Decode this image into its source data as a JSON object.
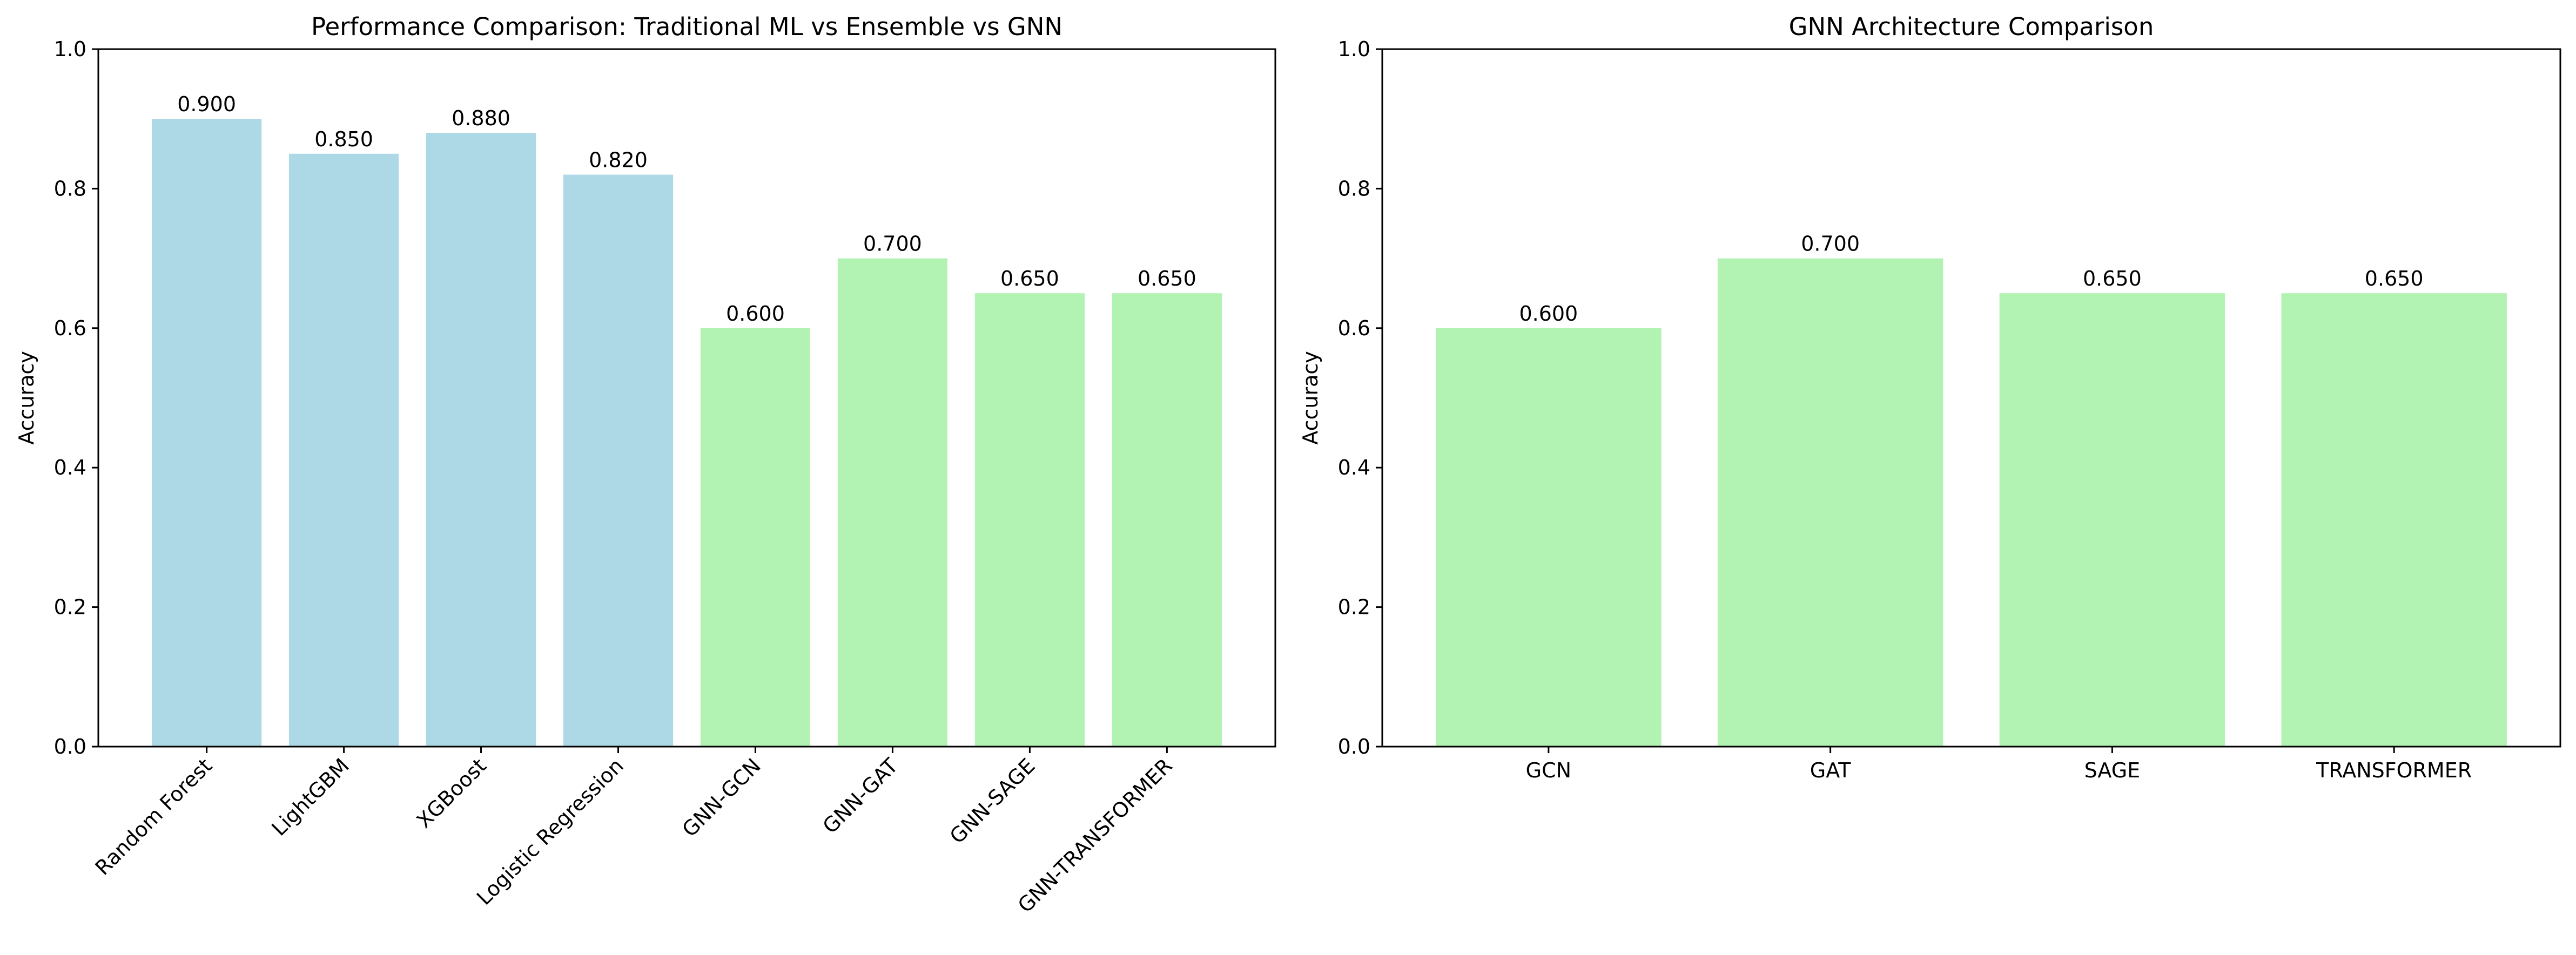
{
  "chart_data": [
    {
      "type": "bar",
      "title": "Performance Comparison: Traditional ML vs Ensemble vs GNN",
      "xlabel": "",
      "ylabel": "Accuracy",
      "ylim": [
        0,
        1.0
      ],
      "yticks": [
        "0.0",
        "0.2",
        "0.4",
        "0.6",
        "0.8",
        "1.0"
      ],
      "categories": [
        "Random Forest",
        "LightGBM",
        "XGBoost",
        "Logistic Regression",
        "GNN-GCN",
        "GNN-GAT",
        "GNN-SAGE",
        "GNN-TRANSFORMER"
      ],
      "values": [
        0.9,
        0.85,
        0.88,
        0.82,
        0.6,
        0.7,
        0.65,
        0.65
      ],
      "value_labels": [
        "0.900",
        "0.850",
        "0.880",
        "0.820",
        "0.600",
        "0.700",
        "0.650",
        "0.650"
      ],
      "bar_colors": [
        "#add8e6",
        "#add8e6",
        "#add8e6",
        "#add8e6",
        "#b2f2b2",
        "#b2f2b2",
        "#b2f2b2",
        "#b2f2b2"
      ],
      "xtick_rotation": 45,
      "grid": false
    },
    {
      "type": "bar",
      "title": "GNN Architecture Comparison",
      "xlabel": "",
      "ylabel": "Accuracy",
      "ylim": [
        0,
        1.0
      ],
      "yticks": [
        "0.0",
        "0.2",
        "0.4",
        "0.6",
        "0.8",
        "1.0"
      ],
      "categories": [
        "GCN",
        "GAT",
        "SAGE",
        "TRANSFORMER"
      ],
      "values": [
        0.6,
        0.7,
        0.65,
        0.65
      ],
      "value_labels": [
        "0.600",
        "0.700",
        "0.650",
        "0.650"
      ],
      "bar_colors": [
        "#b2f2b2",
        "#b2f2b2",
        "#b2f2b2",
        "#b2f2b2"
      ],
      "xtick_rotation": 0,
      "grid": false
    }
  ]
}
